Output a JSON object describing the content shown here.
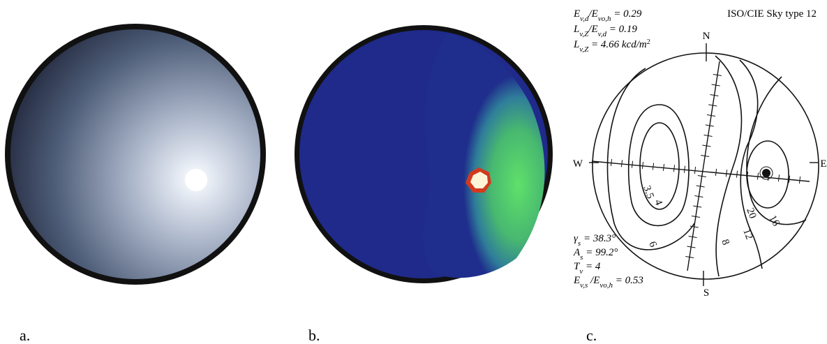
{
  "panels": [
    {
      "label": "a."
    },
    {
      "label": "b."
    },
    {
      "label": "c."
    }
  ],
  "sky_chart": {
    "title": "ISO/CIE Sky type 12",
    "top_params": [
      [
        {
          "text": "E"
        },
        {
          "sub": "v,d"
        },
        {
          "text": "/E"
        },
        {
          "sub": "vo,h"
        },
        {
          "text": " = 0.29"
        }
      ],
      [
        {
          "text": "L"
        },
        {
          "sub": "v,Z"
        },
        {
          "text": "/E"
        },
        {
          "sub": "v,d"
        },
        {
          "text": " = 0.19"
        }
      ],
      [
        {
          "text": "L"
        },
        {
          "sub": "v,Z"
        },
        {
          "text": " = 4.66 kcd/m"
        },
        {
          "sup": "2"
        }
      ]
    ],
    "bottom_params": [
      [
        {
          "text": "γ"
        },
        {
          "sub": "s"
        },
        {
          "text": " = 38.3°"
        }
      ],
      [
        {
          "text": "A"
        },
        {
          "sub": "s"
        },
        {
          "text": " = 99.2°"
        }
      ],
      [
        {
          "text": "T"
        },
        {
          "sub": "v"
        },
        {
          "text": " = 4"
        }
      ],
      [
        {
          "text": "E"
        },
        {
          "sub": "v,s"
        },
        {
          "text": " /E"
        },
        {
          "sub": "vo,h"
        },
        {
          "text": " = 0.53"
        }
      ]
    ],
    "compass": {
      "north": "N",
      "south": "S",
      "west": "W",
      "east": "E"
    },
    "contour_labels": [
      "3.5",
      "4",
      "6",
      "8",
      "12",
      "16",
      "20"
    ]
  }
}
